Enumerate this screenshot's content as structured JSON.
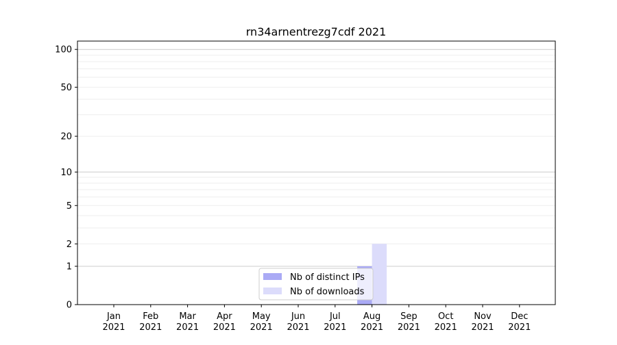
{
  "chart_data": {
    "type": "bar",
    "title": "rn34arnentrezg7cdf 2021",
    "xlabel": "",
    "ylabel": "",
    "y_scale": "log(1+y)",
    "ylim": [
      0,
      116
    ],
    "y_ticks": [
      0,
      1,
      2,
      5,
      10,
      20,
      50,
      100
    ],
    "y_minor_grid": [
      3,
      4,
      6,
      7,
      8,
      9,
      30,
      40,
      60,
      70,
      80,
      90
    ],
    "grid": true,
    "categories": [
      "Jan\n2021",
      "Feb\n2021",
      "Mar\n2021",
      "Apr\n2021",
      "May\n2021",
      "Jun\n2021",
      "Jul\n2021",
      "Aug\n2021",
      "Sep\n2021",
      "Oct\n2021",
      "Nov\n2021",
      "Dec\n2021"
    ],
    "series": [
      {
        "name": "Nb of distinct IPs",
        "color": "#aaaaf5",
        "values": [
          0,
          0,
          0,
          0,
          0,
          0,
          0,
          1,
          0,
          0,
          0,
          0
        ]
      },
      {
        "name": "Nb of downloads",
        "color": "#dcdcfb",
        "values": [
          0,
          0,
          0,
          0,
          0,
          0,
          0,
          2,
          0,
          0,
          0,
          0
        ]
      }
    ],
    "legend_position": "lower-center"
  }
}
